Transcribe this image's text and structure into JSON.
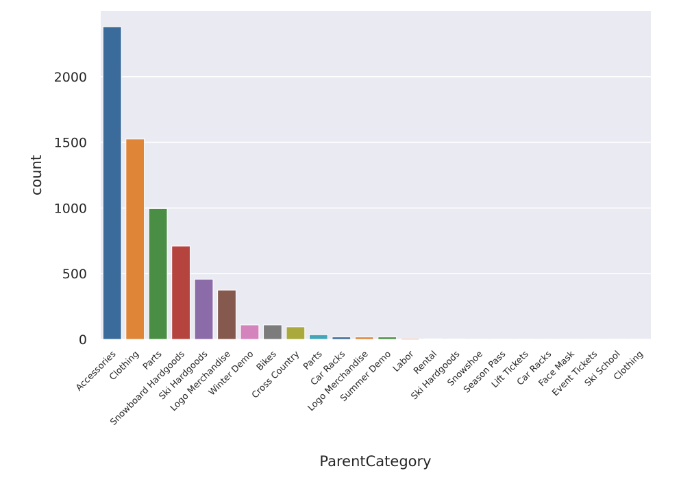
{
  "chart_data": {
    "type": "bar",
    "categories": [
      "Accessories",
      "Clothing",
      "Parts",
      "Snowboard Hardgoods",
      "Ski Hardgoods",
      "Logo Merchandise",
      "Winter Demo",
      "Bikes",
      "Cross Country",
      "Parts",
      "Car Racks",
      "Logo Merchandise",
      "Summer Demo",
      "Labor",
      "Rental",
      "Ski Hardgoods",
      "Snowshoe",
      "Season Pass",
      "Lift Tickets",
      "Car Racks",
      "Face Mask",
      "Event Tickets",
      "Ski School",
      "Clothing"
    ],
    "values": [
      2380,
      1525,
      995,
      710,
      458,
      375,
      110,
      110,
      95,
      35,
      18,
      18,
      18,
      8,
      4,
      3,
      2,
      2,
      2,
      1,
      1,
      1,
      1,
      1
    ],
    "colors": [
      "#3b6b9a",
      "#de8538",
      "#4a8e45",
      "#b5443f",
      "#8c6ba9",
      "#85594e",
      "#d583bd",
      "#7c7c7c",
      "#a9a93e",
      "#43a6b8",
      "#3b6b9a",
      "#de8538",
      "#4a8e45",
      "#b5443f",
      "#8c6ba9",
      "#85594e",
      "#d583bd",
      "#7c7c7c",
      "#a9a93e",
      "#43a6b8",
      "#3b6b9a",
      "#de8538",
      "#4a8e45",
      "#b5443f"
    ],
    "xlabel": "ParentCategory",
    "ylabel": "count",
    "yticks": [
      0,
      500,
      1000,
      1500,
      2000
    ],
    "ylim": [
      0,
      2500
    ],
    "grid": true,
    "background": "#eaeaf2"
  }
}
